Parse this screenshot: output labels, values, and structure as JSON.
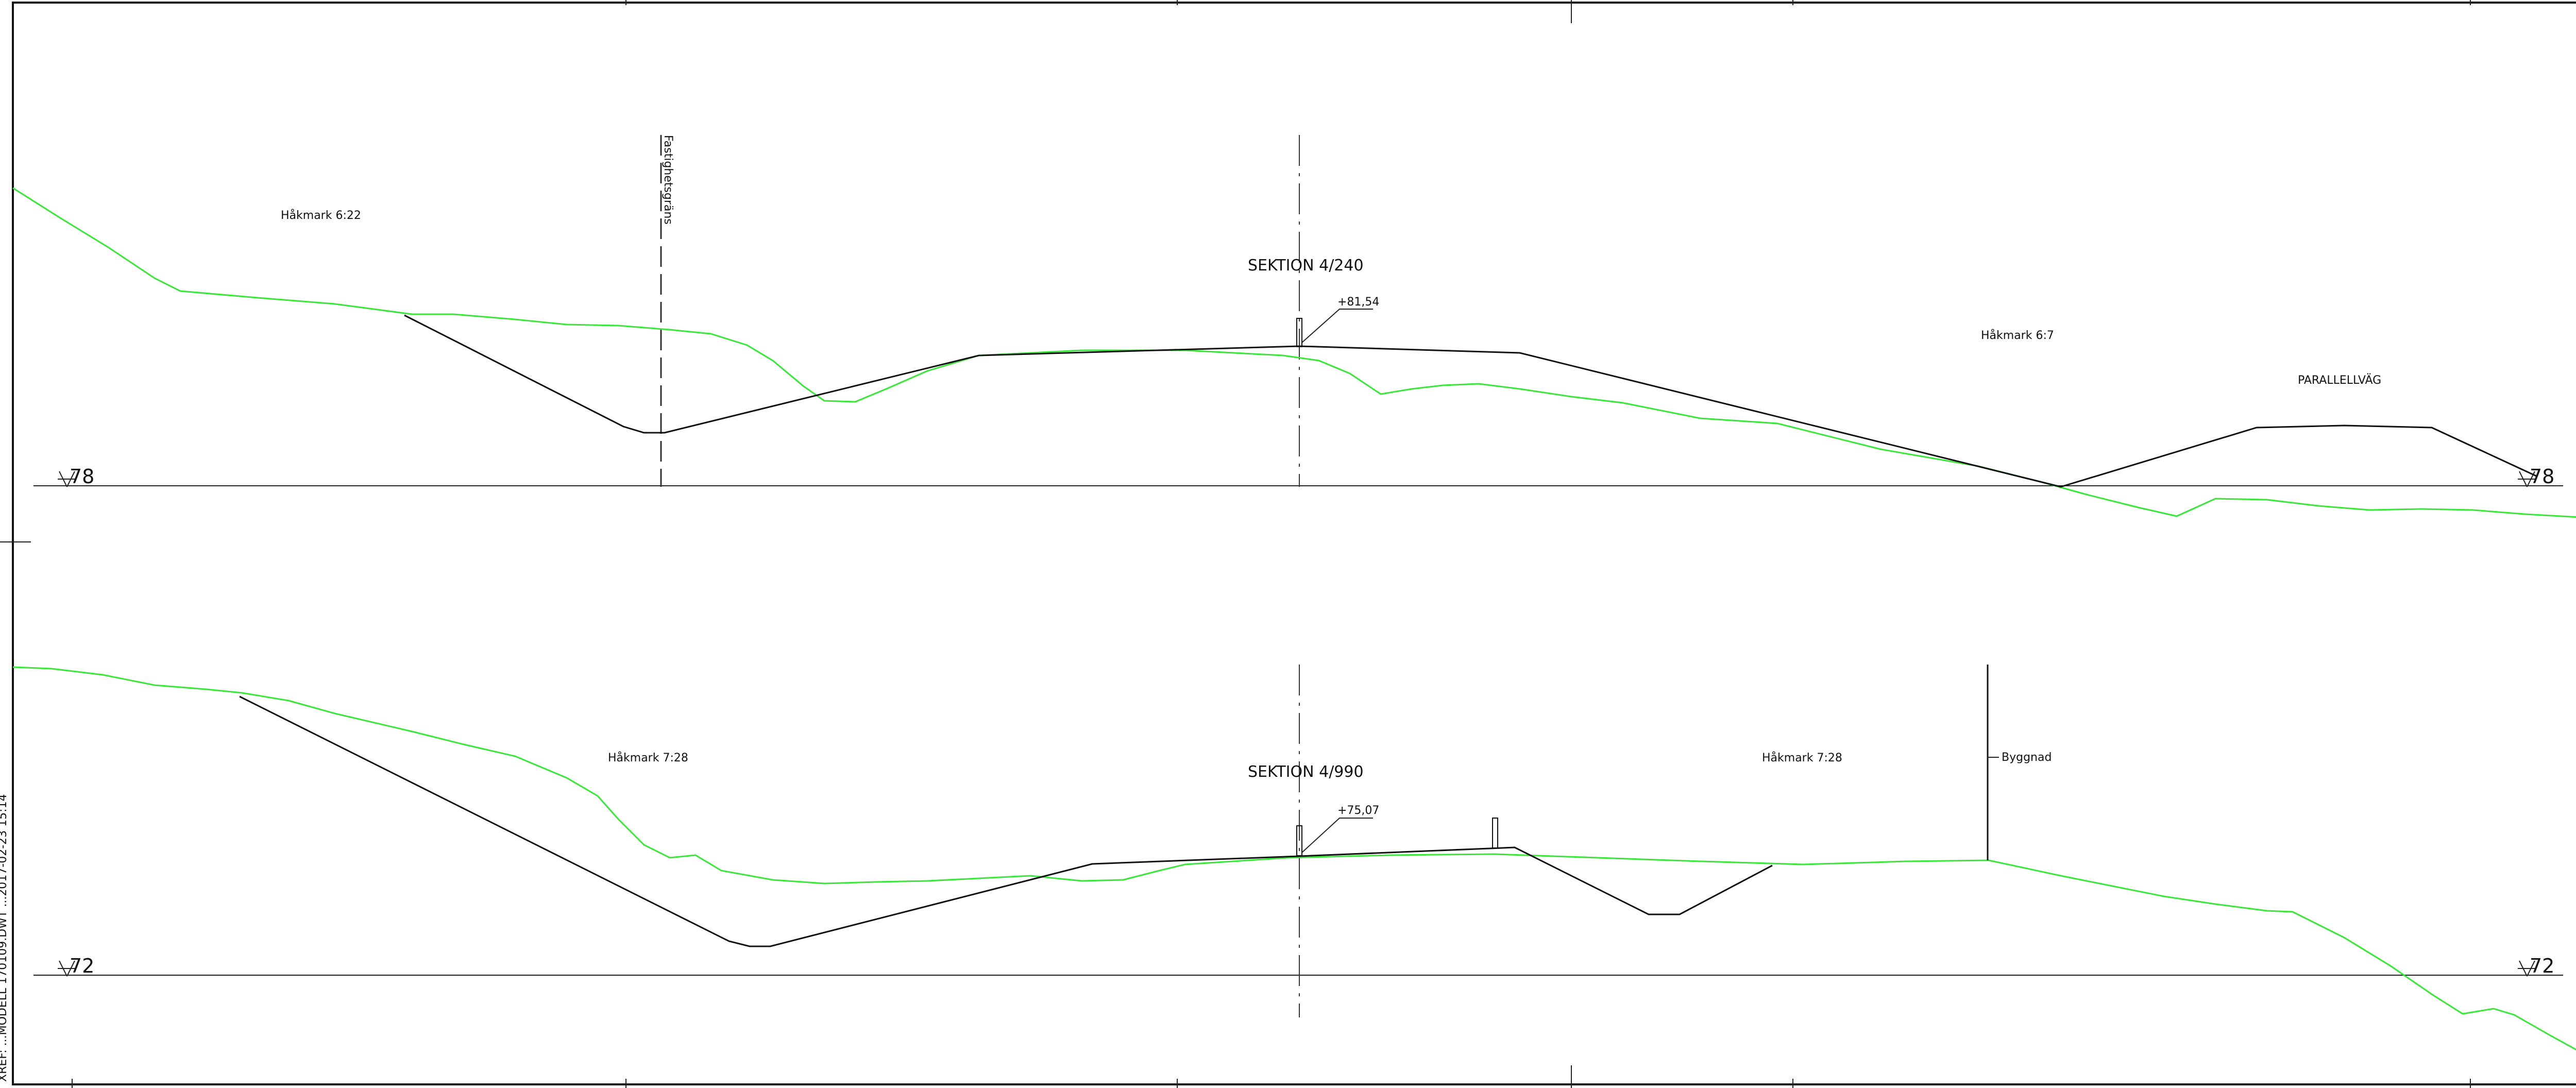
{
  "section_top": {
    "title": "SEKTION 4/240",
    "elevation": "+81,54",
    "level_left": "78",
    "level_right": "78",
    "labels": {
      "left": "Håkmark 6:22",
      "right": "Håkmark 6:7",
      "road": "PARALLELLVÄG",
      "boundary": "Fastighetsgräns"
    }
  },
  "section_bottom": {
    "title": "SEKTION 4/990",
    "elevation": "+75,07",
    "level_left": "72",
    "level_right": "72",
    "labels": {
      "left": "Håkmark 7:28",
      "right": "Håkmark 7:28",
      "building": "Byggnad"
    }
  },
  "sidebar": {
    "stamp": "XREF: ...MODELL 170109.DWT ...2017-02-23 15:14"
  },
  "colors": {
    "ground_line": "#39e639",
    "design_line": "#111111"
  }
}
